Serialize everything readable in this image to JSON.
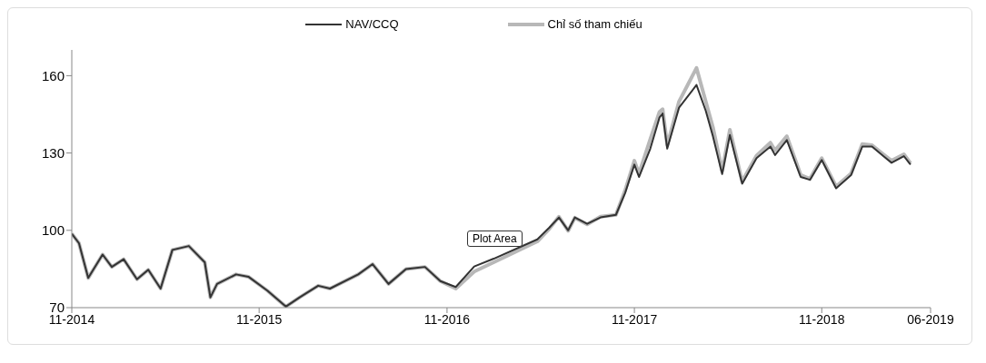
{
  "chart_data": {
    "type": "line",
    "x": [
      "2014-11-01",
      "2014-11-15",
      "2014-12-03",
      "2014-12-31",
      "2015-01-18",
      "2015-02-10",
      "2015-03-08",
      "2015-03-30",
      "2015-04-23",
      "2015-05-16",
      "2015-06-17",
      "2015-07-18",
      "2015-07-29",
      "2015-08-11",
      "2015-09-17",
      "2015-10-11",
      "2015-11-17",
      "2015-12-23",
      "2016-01-19",
      "2016-02-24",
      "2016-03-18",
      "2016-05-12",
      "2016-06-09",
      "2016-07-10",
      "2016-08-13",
      "2016-09-19",
      "2016-10-19",
      "2016-11-18",
      "2016-12-24",
      "2017-01-31",
      "2017-04-26",
      "2017-05-19",
      "2017-06-07",
      "2017-06-25",
      "2017-07-08",
      "2017-08-01",
      "2017-08-27",
      "2017-09-26",
      "2017-10-14",
      "2017-11-01",
      "2017-11-10",
      "2017-12-02",
      "2017-12-20",
      "2017-12-26",
      "2018-01-04",
      "2018-01-27",
      "2018-03-02",
      "2018-03-20",
      "2018-04-03",
      "2018-04-21",
      "2018-05-06",
      "2018-05-30",
      "2018-06-27",
      "2018-07-24",
      "2018-08-02",
      "2018-08-25",
      "2018-09-21",
      "2018-10-09",
      "2018-11-01",
      "2018-11-29",
      "2018-12-28",
      "2019-01-19",
      "2019-02-07",
      "2019-03-01",
      "2019-03-17",
      "2019-04-10",
      "2019-04-23"
    ],
    "series": [
      {
        "name": "NAV/CCQ",
        "color": "#333333",
        "values": [
          98.7,
          95,
          81.5,
          90.6,
          85.8,
          88.8,
          81,
          84.7,
          77.4,
          92.4,
          93.9,
          87.6,
          74,
          79.2,
          82.9,
          82,
          76.6,
          70.4,
          74,
          78.5,
          77.4,
          82.9,
          86.9,
          79.2,
          85,
          85.8,
          80.3,
          78,
          86,
          89,
          96.5,
          101,
          105,
          100,
          105,
          102.5,
          105,
          106,
          114.5,
          125.5,
          120.7,
          131.7,
          143.8,
          145.3,
          131.7,
          147.6,
          156.4,
          146.4,
          136.5,
          121.8,
          137,
          118.1,
          128,
          132.5,
          129.2,
          135,
          120.7,
          119.6,
          127.3,
          116.3,
          121.4,
          132.5,
          132.5,
          128.8,
          126.2,
          128.8,
          125.5
        ]
      },
      {
        "name": "Chỉ số tham chiếu",
        "color": "#b8b8b8",
        "values": [
          98.7,
          95,
          81.5,
          90.6,
          85.8,
          88.8,
          81,
          84.7,
          77.4,
          92.4,
          93.9,
          87.6,
          74,
          79.2,
          82.9,
          82,
          76.6,
          70.4,
          74,
          78.5,
          77.4,
          82.9,
          86.9,
          79.2,
          85,
          85.8,
          80.3,
          77.4,
          84,
          87.6,
          95.7,
          100.5,
          105.3,
          99.8,
          104.9,
          102.3,
          105.3,
          106,
          115.5,
          127,
          122,
          135.4,
          146,
          147,
          133,
          150,
          163,
          150,
          140,
          123,
          139,
          119,
          129,
          134,
          131,
          136.5,
          121.5,
          120,
          128,
          117,
          122,
          133.5,
          133,
          129.5,
          127,
          129.5,
          126
        ]
      }
    ],
    "xticks": [
      {
        "value": "2014-11-01",
        "label": "11-2014"
      },
      {
        "value": "2015-11-01",
        "label": "11-2015"
      },
      {
        "value": "2016-11-01",
        "label": "11-2016"
      },
      {
        "value": "2017-11-01",
        "label": "11-2017"
      },
      {
        "value": "2018-11-01",
        "label": "11-2018"
      },
      {
        "value": "2019-06-01",
        "label": "06-2019"
      }
    ],
    "xlim": [
      "2014-11-01",
      "2019-06-01"
    ],
    "ylim": [
      70,
      170
    ],
    "yticks": [
      70,
      100,
      130,
      160
    ],
    "grid": false,
    "legend": "top",
    "marker": "none",
    "line_style": "solid",
    "annotations": [
      "Plot Area"
    ]
  }
}
